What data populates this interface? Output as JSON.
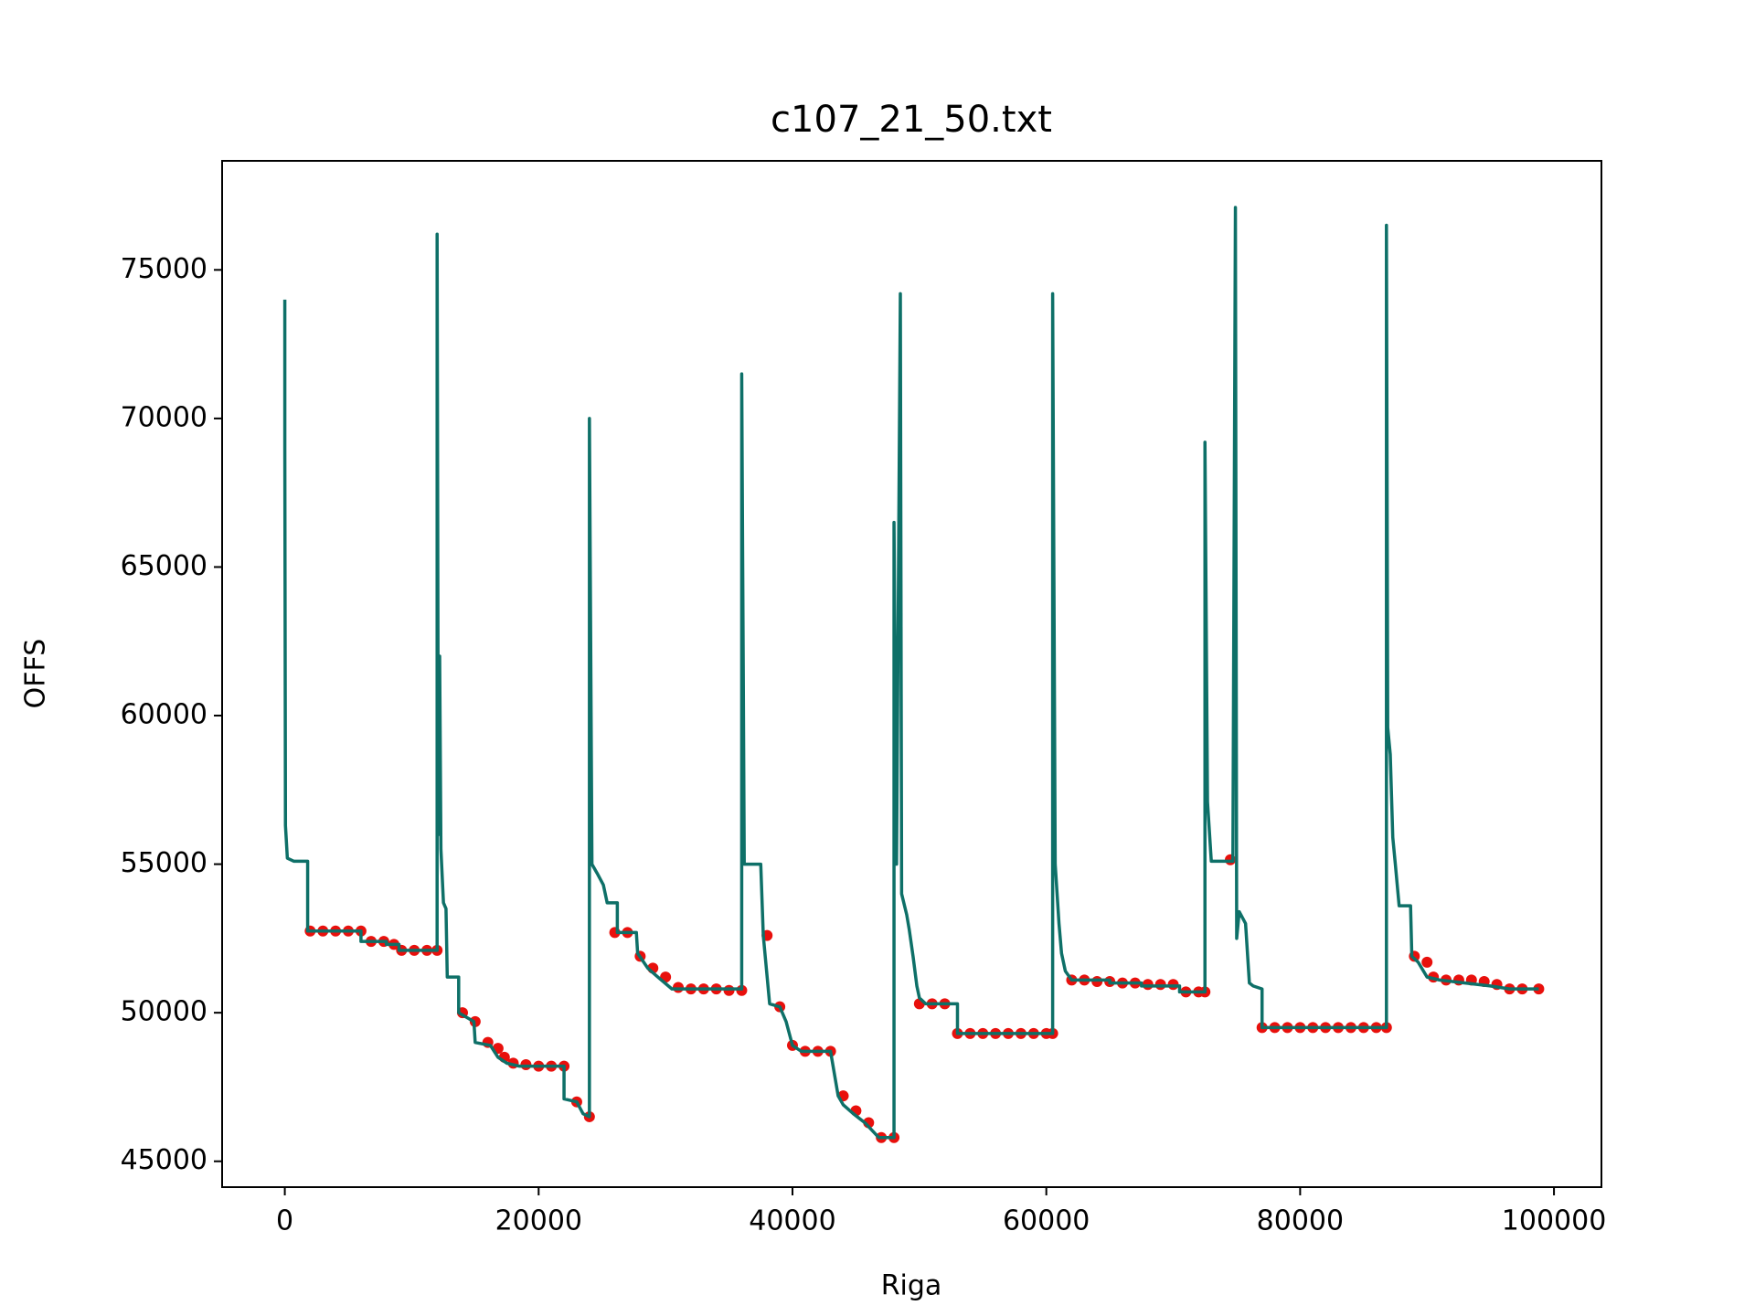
{
  "chart_data": {
    "type": "line",
    "title": "c107_21_50.txt",
    "xlabel": "Riga",
    "ylabel": "OFFS",
    "xlim": [
      -4940,
      103740
    ],
    "ylim": [
      44130,
      78670
    ],
    "xticks": [
      0,
      20000,
      40000,
      60000,
      80000,
      100000
    ],
    "yticks": [
      45000,
      50000,
      55000,
      60000,
      65000,
      70000,
      75000
    ],
    "grid": false,
    "series": [
      {
        "type": "scatter",
        "color": "#e8100c",
        "x": [
          2000,
          3000,
          4000,
          5000,
          6000,
          6800,
          7800,
          8600,
          9200,
          10200,
          11200,
          12000,
          14000,
          15000,
          16000,
          16800,
          17300,
          18000,
          19000,
          20000,
          21000,
          22000,
          23000,
          24000,
          26000,
          27000,
          28000,
          29000,
          30000,
          31000,
          32000,
          33000,
          34000,
          35000,
          36000,
          38000,
          39000,
          40000,
          41000,
          42000,
          43000,
          44000,
          45000,
          46000,
          47000,
          48000,
          50000,
          51000,
          52000,
          53000,
          54000,
          55000,
          56000,
          57000,
          58000,
          59000,
          60000,
          60500,
          62000,
          63000,
          64000,
          65000,
          66000,
          67000,
          68000,
          69000,
          70000,
          71000,
          72000,
          72500,
          74500,
          77000,
          78000,
          79000,
          80000,
          81000,
          82000,
          83000,
          84000,
          85000,
          86000,
          86800,
          89000,
          90000,
          90500,
          91500,
          92500,
          93500,
          94500,
          95500,
          96500,
          97500,
          98800
        ],
        "values": [
          52750,
          52750,
          52750,
          52750,
          52750,
          52400,
          52400,
          52300,
          52100,
          52100,
          52100,
          52100,
          50000,
          49700,
          49000,
          48800,
          48500,
          48300,
          48250,
          48200,
          48200,
          48200,
          47000,
          46500,
          52700,
          52700,
          51900,
          51500,
          51200,
          50850,
          50800,
          50800,
          50800,
          50750,
          50750,
          52600,
          50200,
          48900,
          48700,
          48700,
          48700,
          47200,
          46700,
          46300,
          45800,
          45800,
          50300,
          50300,
          50300,
          49300,
          49300,
          49300,
          49300,
          49300,
          49300,
          49300,
          49300,
          49300,
          51100,
          51100,
          51050,
          51050,
          51000,
          51000,
          50950,
          50950,
          50950,
          50700,
          50700,
          50700,
          55150,
          49500,
          49500,
          49500,
          49500,
          49500,
          49500,
          49500,
          49500,
          49500,
          49500,
          49500,
          51900,
          51700,
          51200,
          51100,
          51100,
          51100,
          51050,
          50950,
          50800,
          50800,
          50800
        ]
      },
      {
        "type": "line",
        "color": "#0e7068",
        "x": [
          0,
          0,
          50,
          200,
          700,
          1800,
          1800,
          6000,
          6000,
          8000,
          8000,
          9000,
          9000,
          12000,
          12000,
          12100,
          12200,
          12300,
          12500,
          12700,
          12800,
          13700,
          13700,
          14900,
          15000,
          16200,
          16800,
          17500,
          18500,
          22000,
          22000,
          23000,
          23500,
          24000,
          24000,
          24200,
          24600,
          25100,
          25400,
          26200,
          26200,
          27700,
          27800,
          28600,
          29400,
          30500,
          36000,
          36000,
          36200,
          37500,
          37700,
          38200,
          39000,
          39500,
          40000,
          40700,
          43000,
          43600,
          44000,
          44800,
          45700,
          46800,
          48000,
          48000,
          48200,
          48500,
          48600,
          49000,
          49200,
          49500,
          49800,
          50000,
          50500,
          53000,
          53000,
          60500,
          60500,
          60700,
          61000,
          61200,
          61500,
          62000,
          65000,
          65000,
          67500,
          67500,
          70500,
          70500,
          72500,
          72500,
          72700,
          73000,
          74700,
          74900,
          75000,
          75200,
          75700,
          76000,
          76300,
          77000,
          77000,
          86800,
          86800,
          86900,
          87100,
          87300,
          87500,
          87800,
          88700,
          88800,
          89300,
          90000,
          91000,
          93000,
          95000,
          96500,
          98800
        ],
        "values": [
          74000,
          69000,
          56300,
          55200,
          55100,
          55100,
          52750,
          52750,
          52400,
          52400,
          52300,
          52300,
          52100,
          52100,
          76200,
          56000,
          62000,
          55500,
          53700,
          53500,
          51200,
          51200,
          50000,
          49700,
          49000,
          48900,
          48500,
          48300,
          48200,
          48200,
          47100,
          47000,
          46600,
          46500,
          70000,
          55000,
          54700,
          54300,
          53700,
          53700,
          52700,
          52700,
          52000,
          51500,
          51200,
          50800,
          50800,
          71500,
          55000,
          55000,
          52600,
          50300,
          50200,
          49700,
          48900,
          48700,
          48700,
          47200,
          46900,
          46600,
          46300,
          45800,
          45800,
          66500,
          55000,
          74200,
          54000,
          53300,
          52800,
          51900,
          50900,
          50500,
          50300,
          50300,
          49300,
          49300,
          74200,
          55000,
          53000,
          52000,
          51400,
          51100,
          51100,
          51000,
          51000,
          50900,
          50900,
          50700,
          50700,
          69200,
          57100,
          55100,
          55100,
          77100,
          52500,
          53400,
          53000,
          51000,
          50900,
          50800,
          49500,
          49500,
          76500,
          59600,
          58700,
          55900,
          55000,
          53600,
          53600,
          51900,
          51700,
          51200,
          51100,
          51000,
          50900,
          50800,
          50800
        ]
      }
    ]
  }
}
